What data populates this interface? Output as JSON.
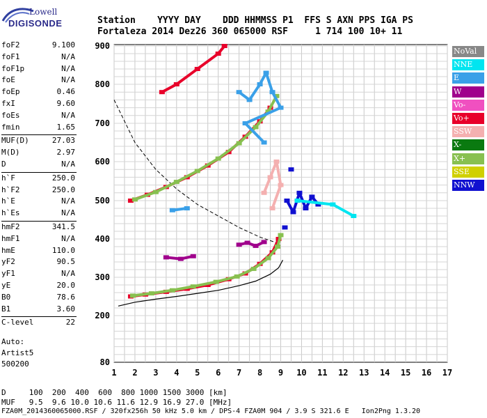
{
  "logo": {
    "line1": "Lowell",
    "line2": "DIGISONDE"
  },
  "header": {
    "row1": "Station    YYYY DAY    DDD HHMMSS P1  FFS S AXN PPS IGA PS",
    "row2": "Fortaleza 2014 Dez26 360 065000 RSF     1 714 100 10+ 11"
  },
  "params": [
    {
      "name": "foF2",
      "value": "9.100"
    },
    {
      "name": "foF1",
      "value": "N/A"
    },
    {
      "name": "foF1p",
      "value": "N/A"
    },
    {
      "name": "foE",
      "value": "N/A"
    },
    {
      "name": "foEp",
      "value": "0.46"
    },
    {
      "name": "fxI",
      "value": "9.60"
    },
    {
      "name": "foEs",
      "value": "N/A"
    },
    {
      "name": "fmin",
      "value": "1.65"
    },
    {
      "name": "MUF(D)",
      "value": "27.03"
    },
    {
      "name": "M(D)",
      "value": "2.97"
    },
    {
      "name": "D",
      "value": "N/A"
    },
    {
      "name": "h`F",
      "value": "250.0"
    },
    {
      "name": "h`F2",
      "value": "250.0"
    },
    {
      "name": "h`E",
      "value": "N/A"
    },
    {
      "name": "h`Es",
      "value": "N/A"
    },
    {
      "name": "hmF2",
      "value": "341.5"
    },
    {
      "name": "hmF1",
      "value": "N/A"
    },
    {
      "name": "hmE",
      "value": "110.0"
    },
    {
      "name": "yF2",
      "value": "90.5"
    },
    {
      "name": "yF1",
      "value": "N/A"
    },
    {
      "name": "yE",
      "value": "20.0"
    },
    {
      "name": "B0",
      "value": "78.6"
    },
    {
      "name": "B1",
      "value": "3.60"
    },
    {
      "name": "C-level",
      "value": "22"
    }
  ],
  "auto": {
    "line1": "Auto:",
    "line2": "Artist5",
    "line3": "500200"
  },
  "legend": [
    {
      "label": "NoVal",
      "color": "#888888",
      "text_color": "#ffffff"
    },
    {
      "label": "NNE",
      "color": "#00e5f0",
      "text_color": "#ffffff"
    },
    {
      "label": "E",
      "color": "#3aa0e8",
      "text_color": "#ffffff"
    },
    {
      "label": "W",
      "color": "#a0008c",
      "text_color": "#ffffff"
    },
    {
      "label": "Vo-",
      "color": "#f050c0",
      "text_color": "#ffffff"
    },
    {
      "label": "Vo+",
      "color": "#e8002a",
      "text_color": "#ffffff"
    },
    {
      "label": "SSW",
      "color": "#f4b0b0",
      "text_color": "#ffffff"
    },
    {
      "label": "X-",
      "color": "#0a7a10",
      "text_color": "#ffffff"
    },
    {
      "label": "X+",
      "color": "#88c050",
      "text_color": "#ffffff"
    },
    {
      "label": "SSE",
      "color": "#d0d000",
      "text_color": "#ffffff"
    },
    {
      "label": "NNW",
      "color": "#1010d0",
      "text_color": "#ffffff"
    }
  ],
  "bottom": {
    "d_row": "D     100  200  400  600  800 1000 1500 3000 [km]",
    "muf_row": "MUF   9.5  9.6 10.0 10.6 11.6 12.9 16.9 27.0 [MHz]",
    "footer": "FZA0M_2014360065000.RSF / 320fx256h 50 kHz 5.0 km / DPS-4 FZA0M 904 / 3.9 S 321.6 E   Ion2Png 1.3.20"
  },
  "chart_data": {
    "type": "scatter",
    "title": "",
    "xlabel": "",
    "ylabel": "",
    "xlim": [
      1,
      17
    ],
    "ylim": [
      80,
      900
    ],
    "x_ticks": [
      1,
      2,
      3,
      4,
      5,
      6,
      7,
      8,
      9,
      10,
      11,
      12,
      13,
      14,
      15,
      16,
      17
    ],
    "y_ticks": [
      80,
      200,
      300,
      400,
      500,
      600,
      700,
      800,
      900
    ],
    "grid": true,
    "series": [
      {
        "name": "Vo+",
        "color": "#e8002a",
        "points": [
          [
            1.8,
            250
          ],
          [
            2.5,
            255
          ],
          [
            3.5,
            262
          ],
          [
            4.5,
            270
          ],
          [
            5.5,
            280
          ],
          [
            6.5,
            295
          ],
          [
            7.3,
            310
          ],
          [
            8.0,
            335
          ],
          [
            8.6,
            365
          ],
          [
            8.9,
            400
          ]
        ]
      },
      {
        "name": "X+",
        "color": "#88c050",
        "points": [
          [
            1.9,
            252
          ],
          [
            2.8,
            258
          ],
          [
            3.8,
            266
          ],
          [
            4.8,
            276
          ],
          [
            5.9,
            288
          ],
          [
            6.9,
            302
          ],
          [
            7.7,
            322
          ],
          [
            8.4,
            350
          ],
          [
            8.85,
            380
          ],
          [
            9.0,
            410
          ]
        ]
      },
      {
        "name": "W",
        "color": "#a0008c",
        "points": [
          [
            7.0,
            385
          ],
          [
            7.4,
            390
          ],
          [
            7.8,
            382
          ],
          [
            8.2,
            392
          ],
          [
            3.5,
            352
          ],
          [
            4.2,
            348
          ],
          [
            4.8,
            355
          ]
        ]
      },
      {
        "name": "Vo+ (2nd hop)",
        "color": "#e8002a",
        "points": [
          [
            1.8,
            500
          ],
          [
            2.6,
            515
          ],
          [
            3.5,
            535
          ],
          [
            4.5,
            560
          ],
          [
            5.5,
            590
          ],
          [
            6.5,
            625
          ],
          [
            7.3,
            665
          ],
          [
            8.0,
            705
          ],
          [
            8.5,
            740
          ]
        ]
      },
      {
        "name": "X+ (2nd hop)",
        "color": "#88c050",
        "points": [
          [
            2.0,
            503
          ],
          [
            3.0,
            522
          ],
          [
            4.0,
            548
          ],
          [
            5.0,
            576
          ],
          [
            6.0,
            608
          ],
          [
            7.0,
            648
          ],
          [
            7.8,
            690
          ],
          [
            8.4,
            730
          ],
          [
            8.8,
            770
          ]
        ]
      },
      {
        "name": "Vo+ (3rd hop)",
        "color": "#e8002a",
        "points": [
          [
            3.3,
            780
          ],
          [
            4.0,
            800
          ],
          [
            5.0,
            840
          ],
          [
            6.0,
            880
          ],
          [
            6.3,
            900
          ]
        ]
      },
      {
        "name": "E",
        "color": "#3aa0e8",
        "points": [
          [
            7.0,
            780
          ],
          [
            7.5,
            760
          ],
          [
            8.0,
            800
          ],
          [
            8.3,
            830
          ],
          [
            8.6,
            780
          ],
          [
            9.0,
            740
          ],
          [
            7.3,
            700
          ],
          [
            8.2,
            650
          ],
          [
            4.5,
            480
          ],
          [
            3.8,
            475
          ]
        ]
      },
      {
        "name": "NNW",
        "color": "#1010d0",
        "points": [
          [
            9.3,
            500
          ],
          [
            9.6,
            470
          ],
          [
            9.9,
            520
          ],
          [
            10.2,
            480
          ],
          [
            10.5,
            510
          ],
          [
            10.8,
            490
          ],
          [
            9.5,
            580
          ],
          [
            9.2,
            430
          ]
        ]
      },
      {
        "name": "SSW",
        "color": "#f4b0b0",
        "points": [
          [
            8.2,
            520
          ],
          [
            8.5,
            560
          ],
          [
            8.8,
            600
          ],
          [
            9.0,
            540
          ],
          [
            8.6,
            480
          ]
        ]
      },
      {
        "name": "NNE",
        "color": "#00e5f0",
        "points": [
          [
            9.8,
            500
          ],
          [
            11.5,
            490
          ],
          [
            12.5,
            460
          ]
        ]
      }
    ],
    "profile_solid": [
      [
        1.2,
        225
      ],
      [
        2.0,
        235
      ],
      [
        3.0,
        243
      ],
      [
        4.0,
        250
      ],
      [
        5.0,
        258
      ],
      [
        6.0,
        266
      ],
      [
        7.0,
        278
      ],
      [
        7.8,
        290
      ],
      [
        8.5,
        308
      ],
      [
        8.9,
        325
      ],
      [
        9.1,
        345
      ]
    ],
    "profile_dashed": [
      [
        1.0,
        760
      ],
      [
        2.0,
        650
      ],
      [
        3.0,
        580
      ],
      [
        4.0,
        530
      ],
      [
        5.0,
        490
      ],
      [
        6.0,
        460
      ],
      [
        7.0,
        430
      ],
      [
        8.0,
        405
      ],
      [
        8.8,
        390
      ]
    ]
  }
}
